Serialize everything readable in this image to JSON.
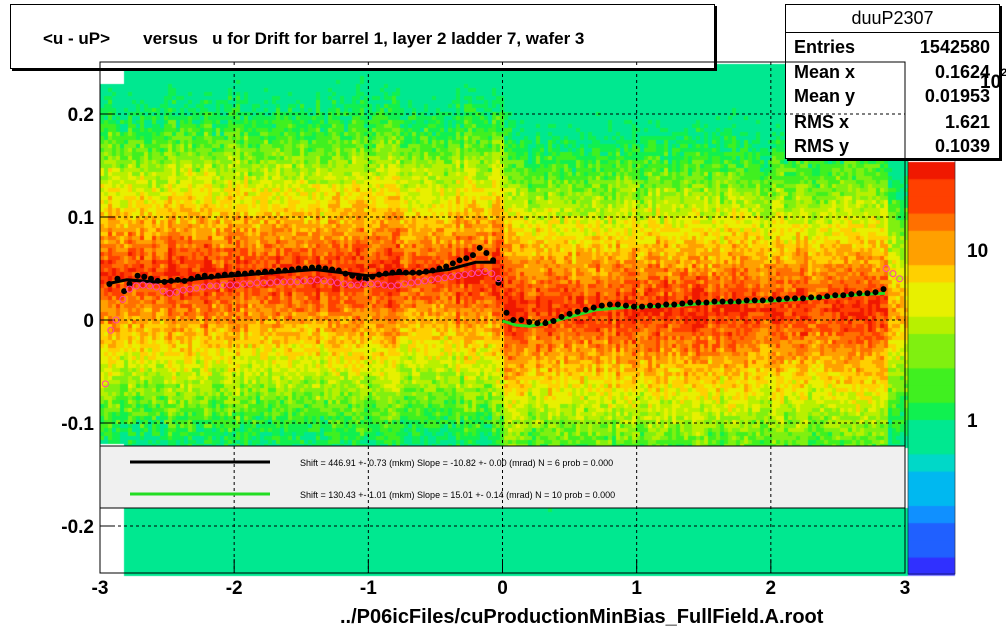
{
  "title": "<u - uP>       versus   u for Drift for barrel 1, layer 2 ladder 7, wafer 3",
  "footer": "../P06icFiles/cuProductionMinBias_FullField.A.root",
  "stats": {
    "name": "duuP2307",
    "rows": [
      {
        "label": "Entries",
        "value": "1542580"
      },
      {
        "label": "Mean x",
        "value": "0.1624"
      },
      {
        "label": "Mean y",
        "value": "0.01953"
      },
      {
        "label": "RMS x",
        "value": "1.621"
      },
      {
        "label": "RMS y",
        "value": "0.1039"
      }
    ]
  },
  "colorbar": {
    "tick_labels": [
      "1",
      "10",
      "10"
    ],
    "exponent_label": "2"
  },
  "fit_legend": [
    {
      "color": "#000000",
      "text": "Shift =   446.91 +- 0.73 (mkm) Slope =   -10.82 +- 0.00 (mrad)  N = 6 prob = 0.000"
    },
    {
      "color": "#22dd22",
      "text": "Shift =   130.43 +- 1.01 (mkm) Slope =    15.01 +- 0.14 (mrad)  N = 10 prob = 0.000"
    }
  ],
  "chart_data": {
    "type": "heatmap",
    "xlim": [
      -3,
      3
    ],
    "ylim": [
      -0.25,
      0.25
    ],
    "x_ticks": [
      -3,
      -2,
      -1,
      0,
      1,
      2,
      3
    ],
    "x_tick_labels": [
      "-3",
      "-2",
      "-1",
      "0",
      "1",
      "2",
      "3"
    ],
    "y_ticks": [
      -0.2,
      -0.1,
      0,
      0.1,
      0.2
    ],
    "y_tick_labels": [
      "-0.2",
      "-0.1",
      "0",
      "0.1",
      "0.2"
    ],
    "grid": "dashed",
    "series": [
      {
        "marker": "filled-circle",
        "color": "#000000",
        "x": [
          -2.93,
          -2.87,
          -2.82,
          -2.78,
          -2.72,
          -2.67,
          -2.62,
          -2.57,
          -2.52,
          -2.47,
          -2.42,
          -2.37,
          -2.32,
          -2.27,
          -2.22,
          -2.17,
          -2.12,
          -2.07,
          -2.02,
          -1.97,
          -1.92,
          -1.87,
          -1.82,
          -1.77,
          -1.72,
          -1.67,
          -1.62,
          -1.57,
          -1.52,
          -1.47,
          -1.42,
          -1.37,
          -1.32,
          -1.27,
          -1.22,
          -1.17,
          -1.12,
          -1.07,
          -1.02,
          -0.97,
          -0.92,
          -0.87,
          -0.82,
          -0.77,
          -0.72,
          -0.67,
          -0.62,
          -0.57,
          -0.52,
          -0.47,
          -0.42,
          -0.37,
          -0.32,
          -0.27,
          -0.22,
          -0.17,
          -0.12,
          -0.07,
          -0.03,
          0.03,
          0.08,
          0.14,
          0.2,
          0.26,
          0.32,
          0.38,
          0.44,
          0.5,
          0.56,
          0.62,
          0.68,
          0.74,
          0.8,
          0.86,
          0.92,
          0.98,
          1.04,
          1.1,
          1.16,
          1.22,
          1.28,
          1.34,
          1.4,
          1.46,
          1.52,
          1.58,
          1.64,
          1.7,
          1.76,
          1.82,
          1.88,
          1.94,
          2.0,
          2.06,
          2.12,
          2.18,
          2.24,
          2.3,
          2.36,
          2.42,
          2.48,
          2.54,
          2.6,
          2.66,
          2.72,
          2.78,
          2.84
        ],
        "y": [
          0.035,
          0.04,
          0.028,
          0.035,
          0.043,
          0.042,
          0.04,
          0.038,
          0.037,
          0.038,
          0.039,
          0.038,
          0.04,
          0.042,
          0.043,
          0.042,
          0.043,
          0.044,
          0.044,
          0.045,
          0.045,
          0.046,
          0.046,
          0.047,
          0.047,
          0.048,
          0.048,
          0.049,
          0.05,
          0.05,
          0.051,
          0.051,
          0.05,
          0.049,
          0.048,
          0.045,
          0.043,
          0.041,
          0.04,
          0.042,
          0.044,
          0.045,
          0.046,
          0.047,
          0.046,
          0.046,
          0.046,
          0.047,
          0.048,
          0.05,
          0.052,
          0.055,
          0.058,
          0.06,
          0.063,
          0.07,
          0.065,
          0.058,
          0.036,
          0.007,
          0.0,
          0.0,
          -0.002,
          -0.003,
          -0.003,
          -0.001,
          0.003,
          0.006,
          0.008,
          0.01,
          0.012,
          0.014,
          0.015,
          0.015,
          0.014,
          0.013,
          0.013,
          0.014,
          0.014,
          0.015,
          0.015,
          0.016,
          0.017,
          0.017,
          0.017,
          0.018,
          0.018,
          0.018,
          0.018,
          0.019,
          0.019,
          0.019,
          0.02,
          0.02,
          0.021,
          0.021,
          0.021,
          0.022,
          0.022,
          0.023,
          0.024,
          0.024,
          0.025,
          0.026,
          0.026,
          0.027,
          0.03
        ]
      },
      {
        "marker": "open-circle",
        "color": "#ff44aa",
        "x": [
          -2.96,
          -2.92,
          -2.88,
          -2.83,
          -2.78,
          -2.73,
          -2.68,
          -2.63,
          -2.58,
          -2.53,
          -2.48,
          -2.43,
          -2.38,
          -2.33,
          -2.28,
          -2.23,
          -2.18,
          -2.13,
          -2.08,
          -2.03,
          -1.98,
          -1.93,
          -1.88,
          -1.83,
          -1.78,
          -1.73,
          -1.68,
          -1.63,
          -1.58,
          -1.53,
          -1.48,
          -1.43,
          -1.38,
          -1.33,
          -1.28,
          -1.23,
          -1.18,
          -1.13,
          -1.08,
          -1.03,
          -0.98,
          -0.93,
          -0.88,
          -0.83,
          -0.78,
          -0.73,
          -0.68,
          -0.63,
          -0.58,
          -0.53,
          -0.48,
          -0.43,
          -0.38,
          -0.33,
          -0.28,
          -0.23,
          -0.18,
          -0.13,
          -0.08,
          -0.03,
          2.86,
          2.91,
          2.96
        ],
        "y": [
          -0.062,
          -0.01,
          0.0,
          0.02,
          0.03,
          0.033,
          0.034,
          0.033,
          0.032,
          0.028,
          0.026,
          0.027,
          0.029,
          0.03,
          0.031,
          0.032,
          0.033,
          0.033,
          0.034,
          0.034,
          0.034,
          0.035,
          0.035,
          0.036,
          0.036,
          0.036,
          0.037,
          0.037,
          0.037,
          0.037,
          0.038,
          0.038,
          0.039,
          0.038,
          0.037,
          0.036,
          0.035,
          0.034,
          0.034,
          0.035,
          0.035,
          0.035,
          0.034,
          0.033,
          0.034,
          0.035,
          0.036,
          0.037,
          0.038,
          0.039,
          0.04,
          0.041,
          0.042,
          0.043,
          0.044,
          0.045,
          0.046,
          0.047,
          0.045,
          0.04,
          0.05,
          0.045,
          0.04
        ]
      }
    ],
    "fits": [
      {
        "color": "#000000",
        "x": [
          -2.95,
          -2.8,
          -2.6,
          -2.4,
          -2.2,
          -2.0,
          -1.8,
          -1.6,
          -1.4,
          -1.2,
          -1.0,
          -0.8,
          -0.6,
          -0.4,
          -0.2,
          -0.05
        ],
        "y": [
          0.035,
          0.039,
          0.037,
          0.038,
          0.041,
          0.043,
          0.045,
          0.047,
          0.049,
          0.046,
          0.043,
          0.045,
          0.046,
          0.049,
          0.056,
          0.056
        ]
      },
      {
        "color": "#22dd22",
        "x": [
          0.0,
          0.1,
          0.2,
          0.3,
          0.5,
          0.7,
          0.9,
          1.1,
          1.3,
          1.5,
          1.7,
          1.9,
          2.1,
          2.3,
          2.5,
          2.7,
          2.85
        ],
        "y": [
          -0.001,
          -0.005,
          -0.006,
          -0.004,
          0.003,
          0.01,
          0.012,
          0.013,
          0.014,
          0.016,
          0.017,
          0.018,
          0.019,
          0.021,
          0.023,
          0.025,
          0.026
        ]
      }
    ]
  }
}
